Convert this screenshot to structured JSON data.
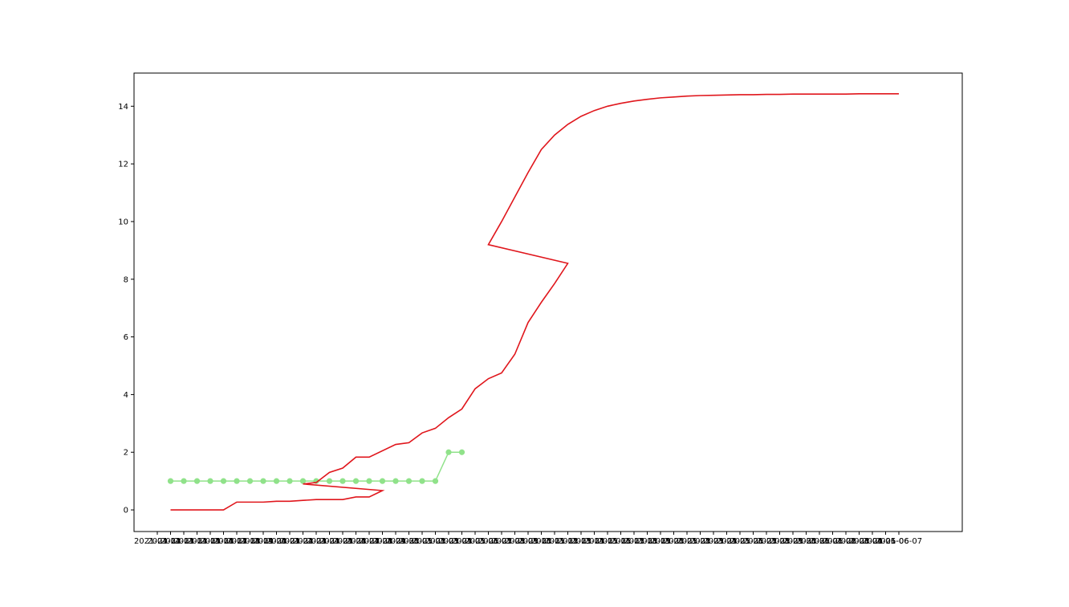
{
  "chart_data": {
    "type": "line",
    "title": "",
    "xlabel": "",
    "ylabel": "",
    "ylim": [
      -0.75,
      15.15
    ],
    "yticks": [
      0,
      2,
      4,
      6,
      8,
      10,
      12,
      14
    ],
    "grid": false,
    "legend": "none",
    "categories": [
      "2021-04-12",
      "2021-04-13",
      "2021-04-14",
      "2021-04-15",
      "2021-04-16",
      "2021-04-17",
      "2021-04-18",
      "2021-04-19",
      "2021-04-20",
      "2021-04-21",
      "2021-04-22",
      "2021-04-23",
      "2021-04-24",
      "2021-04-25",
      "2021-04-26",
      "2021-04-27",
      "2021-04-28",
      "2021-04-29",
      "2021-04-30",
      "2021-05-01",
      "2021-05-02",
      "2021-05-03",
      "2021-05-04",
      "2021-05-05",
      "2021-05-06",
      "2021-05-07",
      "2021-05-08",
      "2021-05-09",
      "2021-05-10",
      "2021-05-11",
      "2021-05-12",
      "2021-05-13",
      "2021-05-14",
      "2021-05-15",
      "2021-05-16",
      "2021-05-17",
      "2021-05-18",
      "2021-05-19",
      "2021-05-20",
      "2021-05-21",
      "2021-05-22",
      "2021-05-23",
      "2021-05-24",
      "2021-05-25",
      "2021-05-26",
      "2021-05-27",
      "2021-05-28",
      "2021-05-29",
      "2021-05-30",
      "2021-05-31",
      "2021-06-01",
      "2021-06-02",
      "2021-06-03",
      "2021-06-04",
      "2021-06-05",
      "2021-06-06",
      "2021-06-07"
    ],
    "series": [
      {
        "color": "#90e28a",
        "marker": "circle",
        "points": [
          [
            "2021-04-13",
            1
          ],
          [
            "2021-04-14",
            1
          ],
          [
            "2021-04-15",
            1
          ],
          [
            "2021-04-16",
            1
          ],
          [
            "2021-04-17",
            1
          ],
          [
            "2021-04-18",
            1
          ],
          [
            "2021-04-19",
            1
          ],
          [
            "2021-04-20",
            1
          ],
          [
            "2021-04-21",
            1
          ],
          [
            "2021-04-22",
            1
          ],
          [
            "2021-04-23",
            1
          ],
          [
            "2021-04-24",
            1
          ],
          [
            "2021-04-25",
            1
          ],
          [
            "2021-04-26",
            1
          ],
          [
            "2021-04-27",
            1
          ],
          [
            "2021-04-28",
            1
          ],
          [
            "2021-04-29",
            1
          ],
          [
            "2021-04-30",
            1
          ],
          [
            "2021-05-01",
            1
          ],
          [
            "2021-05-02",
            1
          ],
          [
            "2021-05-03",
            1
          ],
          [
            "2021-05-04",
            2
          ],
          [
            "2021-05-05",
            2
          ]
        ]
      },
      {
        "color": "#e0161c",
        "marker": "none",
        "points": [
          [
            "2021-04-13",
            0
          ],
          [
            "2021-04-14",
            0
          ],
          [
            "2021-04-15",
            0
          ],
          [
            "2021-04-16",
            0
          ],
          [
            "2021-04-17",
            0
          ],
          [
            "2021-04-18",
            0.27
          ],
          [
            "2021-04-19",
            0.27
          ],
          [
            "2021-04-20",
            0.27
          ],
          [
            "2021-04-21",
            0.3
          ],
          [
            "2021-04-22",
            0.3
          ],
          [
            "2021-04-23",
            0.33
          ],
          [
            "2021-04-24",
            0.36
          ],
          [
            "2021-04-25",
            0.36
          ],
          [
            "2021-04-26",
            0.36
          ],
          [
            "2021-04-27",
            0.45
          ],
          [
            "2021-04-28",
            0.45
          ],
          [
            "2021-04-29",
            0.67
          ],
          [
            "2021-04-23",
            0.9
          ],
          [
            "2021-04-24",
            0.95
          ],
          [
            "2021-04-25",
            1.3
          ],
          [
            "2021-04-26",
            1.45
          ],
          [
            "2021-04-27",
            1.83
          ],
          [
            "2021-04-28",
            1.83
          ],
          [
            "2021-04-30",
            2.27
          ],
          [
            "2021-05-01",
            2.33
          ],
          [
            "2021-05-02",
            2.67
          ],
          [
            "2021-05-03",
            2.83
          ],
          [
            "2021-05-04",
            3.2
          ],
          [
            "2021-05-05",
            3.5
          ],
          [
            "2021-05-06",
            4.2
          ],
          [
            "2021-05-07",
            4.55
          ],
          [
            "2021-05-08",
            4.75
          ],
          [
            "2021-05-09",
            5.4
          ],
          [
            "2021-05-10",
            6.5
          ],
          [
            "2021-05-11",
            7.2
          ],
          [
            "2021-05-12",
            7.85
          ],
          [
            "2021-05-13",
            8.55
          ],
          [
            "2021-05-07",
            9.2
          ],
          [
            "2021-05-08",
            10.0
          ],
          [
            "2021-05-09",
            10.85
          ],
          [
            "2021-05-10",
            11.7
          ],
          [
            "2021-05-11",
            12.5
          ],
          [
            "2021-05-12",
            13.0
          ],
          [
            "2021-05-13",
            13.37
          ],
          [
            "2021-05-14",
            13.65
          ],
          [
            "2021-05-15",
            13.85
          ],
          [
            "2021-05-16",
            14.0
          ],
          [
            "2021-05-17",
            14.1
          ],
          [
            "2021-05-18",
            14.18
          ],
          [
            "2021-05-19",
            14.24
          ],
          [
            "2021-05-20",
            14.29
          ],
          [
            "2021-05-21",
            14.32
          ],
          [
            "2021-05-22",
            14.35
          ],
          [
            "2021-05-23",
            14.37
          ],
          [
            "2021-05-24",
            14.38
          ],
          [
            "2021-05-25",
            14.39
          ],
          [
            "2021-05-26",
            14.4
          ],
          [
            "2021-05-27",
            14.4
          ],
          [
            "2021-05-28",
            14.41
          ],
          [
            "2021-05-29",
            14.41
          ],
          [
            "2021-05-30",
            14.42
          ],
          [
            "2021-05-31",
            14.42
          ],
          [
            "2021-06-01",
            14.42
          ],
          [
            "2021-06-02",
            14.42
          ],
          [
            "2021-06-03",
            14.42
          ],
          [
            "2021-06-04",
            14.43
          ],
          [
            "2021-06-05",
            14.43
          ],
          [
            "2021-06-06",
            14.43
          ],
          [
            "2021-06-07",
            14.43
          ]
        ]
      }
    ]
  }
}
